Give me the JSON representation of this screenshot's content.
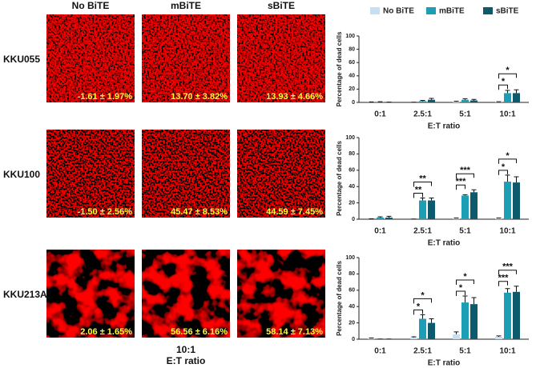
{
  "columns": [
    "No BiTE",
    "mBiTE",
    "sBiTE"
  ],
  "rows": [
    {
      "label": "KKU055",
      "image_labels": [
        "-1.61 ± 1.97%",
        "13.70 ± 3.82%",
        "13.93 ± 4.66%"
      ]
    },
    {
      "label": "KKU100",
      "image_labels": [
        "-1.50 ± 2.56%",
        "45.47 ± 8.53%",
        "44.59 ± 7.45%"
      ]
    },
    {
      "label": "KKU213A",
      "image_labels": [
        "2.06 ± 1.65%",
        "56.56 ± 6.16%",
        "58.14 ± 7.13%"
      ]
    }
  ],
  "image_caption": {
    "ratio": "10:1",
    "axis": "E:T ratio"
  },
  "chart_data": [
    {
      "type": "bar",
      "y_label": "Percentage of dead cells",
      "x_label": "E:T ratio",
      "categories": [
        "0:1",
        "2.5:1",
        "5:1",
        "10:1"
      ],
      "series": [
        {
          "name": "No BiTE",
          "color": "#c6dff3",
          "values": [
            0.3,
            0,
            1,
            0.5
          ],
          "errors": [
            0.5,
            0.3,
            0.8,
            0.5
          ]
        },
        {
          "name": "mBiTE",
          "color": "#1c9fb5",
          "values": [
            0.5,
            2,
            4,
            14
          ],
          "errors": [
            0.5,
            1,
            1.5,
            4
          ]
        },
        {
          "name": "sBiTE",
          "color": "#0e5a6d",
          "values": [
            0,
            4,
            3,
            14
          ],
          "errors": [
            0.5,
            2,
            1.5,
            5
          ]
        }
      ],
      "ylim": [
        0,
        100
      ],
      "yticks": [
        0,
        20,
        40,
        60,
        80,
        100
      ],
      "annotations": [
        {
          "category": 3,
          "series": [
            0,
            1
          ],
          "text": "*"
        },
        {
          "category": 3,
          "series": [
            0,
            2
          ],
          "text": "*"
        }
      ]
    },
    {
      "type": "bar",
      "y_label": "Percentage of dead cells",
      "x_label": "E:T ratio",
      "categories": [
        "0:1",
        "2.5:1",
        "5:1",
        "10:1"
      ],
      "series": [
        {
          "color": "#c6dff3",
          "values": [
            0,
            0,
            1,
            1
          ],
          "errors": [
            0.5,
            0.3,
            0.5,
            0.5
          ]
        },
        {
          "color": "#1c9fb5",
          "values": [
            2,
            23,
            29,
            46
          ],
          "errors": [
            1,
            3,
            1,
            8
          ]
        },
        {
          "color": "#0e5a6d",
          "values": [
            2,
            23,
            33,
            45
          ],
          "errors": [
            1.5,
            3,
            3,
            7
          ]
        }
      ],
      "ylim": [
        0,
        100
      ],
      "yticks": [
        0,
        20,
        40,
        60,
        80,
        100
      ],
      "annotations": [
        {
          "category": 1,
          "series": [
            0,
            1
          ],
          "text": "**"
        },
        {
          "category": 1,
          "series": [
            0,
            2
          ],
          "text": "**"
        },
        {
          "category": 2,
          "series": [
            0,
            1
          ],
          "text": "***"
        },
        {
          "category": 2,
          "series": [
            0,
            2
          ],
          "text": "***"
        },
        {
          "category": 3,
          "series": [
            0,
            1
          ],
          "text": "*"
        },
        {
          "category": 3,
          "series": [
            0,
            2
          ],
          "text": "*"
        }
      ]
    },
    {
      "type": "bar",
      "y_label": "Percentage of dead cells",
      "x_label": "E:T ratio",
      "categories": [
        "0:1",
        "2.5:1",
        "5:1",
        "10:1"
      ],
      "series": [
        {
          "color": "#c6dff3",
          "values": [
            1,
            2,
            6,
            3
          ],
          "errors": [
            0.5,
            1,
            3,
            1
          ]
        },
        {
          "color": "#1c9fb5",
          "values": [
            0,
            25,
            45,
            57
          ],
          "errors": [
            0.3,
            5,
            8,
            5
          ]
        },
        {
          "color": "#0e5a6d",
          "values": [
            0,
            20,
            43,
            58
          ],
          "errors": [
            0.3,
            5,
            8,
            7
          ]
        }
      ],
      "ylim": [
        0,
        100
      ],
      "yticks": [
        0,
        20,
        40,
        60,
        80,
        100
      ],
      "annotations": [
        {
          "category": 1,
          "series": [
            0,
            1
          ],
          "text": "*"
        },
        {
          "category": 1,
          "series": [
            0,
            2
          ],
          "text": "*"
        },
        {
          "category": 2,
          "series": [
            0,
            1
          ],
          "text": "*"
        },
        {
          "category": 2,
          "series": [
            0,
            2
          ],
          "text": "*"
        },
        {
          "category": 3,
          "series": [
            0,
            1
          ],
          "text": "***"
        },
        {
          "category": 3,
          "series": [
            0,
            2
          ],
          "text": "***"
        }
      ]
    }
  ]
}
